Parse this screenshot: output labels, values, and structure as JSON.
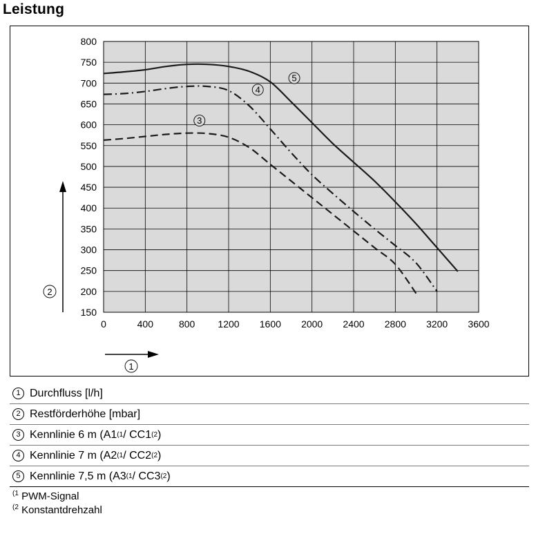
{
  "title": "Leistung",
  "chart_data": {
    "type": "line",
    "xlim": [
      0,
      3600
    ],
    "ylim": [
      150,
      800
    ],
    "x_ticks": [
      "0",
      "400",
      "800",
      "1200",
      "1600",
      "2000",
      "2400",
      "2800",
      "3200",
      "3600"
    ],
    "y_ticks": [
      "150",
      "200",
      "250",
      "300",
      "350",
      "400",
      "450",
      "500",
      "550",
      "600",
      "650",
      "700",
      "750",
      "800"
    ],
    "grid": true,
    "axis_markers": {
      "x": "1",
      "y": "2"
    },
    "series": [
      {
        "marker": "3",
        "style": "dashed",
        "points": [
          [
            0,
            563
          ],
          [
            200,
            567
          ],
          [
            400,
            572
          ],
          [
            600,
            577
          ],
          [
            800,
            580
          ],
          [
            1000,
            579
          ],
          [
            1200,
            570
          ],
          [
            1400,
            545
          ],
          [
            1600,
            505
          ],
          [
            1800,
            465
          ],
          [
            2000,
            425
          ],
          [
            2200,
            385
          ],
          [
            2400,
            345
          ],
          [
            2600,
            305
          ],
          [
            2800,
            265
          ],
          [
            3000,
            195
          ]
        ]
      },
      {
        "marker": "4",
        "style": "dashdot",
        "points": [
          [
            0,
            673
          ],
          [
            200,
            675
          ],
          [
            400,
            680
          ],
          [
            600,
            687
          ],
          [
            800,
            692
          ],
          [
            1000,
            692
          ],
          [
            1200,
            682
          ],
          [
            1400,
            645
          ],
          [
            1600,
            590
          ],
          [
            1800,
            533
          ],
          [
            2000,
            480
          ],
          [
            2200,
            435
          ],
          [
            2400,
            392
          ],
          [
            2600,
            350
          ],
          [
            2800,
            310
          ],
          [
            3000,
            268
          ],
          [
            3200,
            200
          ]
        ]
      },
      {
        "marker": "5",
        "style": "solid",
        "points": [
          [
            0,
            723
          ],
          [
            200,
            727
          ],
          [
            400,
            732
          ],
          [
            600,
            740
          ],
          [
            800,
            745
          ],
          [
            1000,
            745
          ],
          [
            1200,
            740
          ],
          [
            1400,
            728
          ],
          [
            1600,
            703
          ],
          [
            1800,
            655
          ],
          [
            2000,
            605
          ],
          [
            2200,
            555
          ],
          [
            2400,
            510
          ],
          [
            2600,
            465
          ],
          [
            2800,
            415
          ],
          [
            3000,
            362
          ],
          [
            3200,
            305
          ],
          [
            3400,
            248
          ]
        ]
      }
    ],
    "curve_labels": [
      {
        "marker": "3",
        "at": [
          920,
          610
        ]
      },
      {
        "marker": "4",
        "at": [
          1480,
          684
        ]
      },
      {
        "marker": "5",
        "at": [
          1830,
          712
        ]
      }
    ]
  },
  "legend": [
    {
      "marker": "1",
      "text": "Durchfluss [l/h]"
    },
    {
      "marker": "2",
      "text": "Restförderhöhe [mbar]"
    },
    {
      "marker": "3",
      "text": "Kennlinie 6 m (A1",
      "ref1": "(1",
      "mid": " / CC1",
      "ref2": "(2",
      "end": ")"
    },
    {
      "marker": "4",
      "text": "Kennlinie 7 m (A2",
      "ref1": "(1",
      "mid": " / CC2",
      "ref2": "(2",
      "end": ")"
    },
    {
      "marker": "5",
      "text": "Kennlinie 7,5 m (A3",
      "ref1": "(1",
      "mid": " / CC3",
      "ref2": "(2",
      "end": ")"
    }
  ],
  "footnotes": [
    {
      "ref": "(1",
      "text": " PWM-Signal"
    },
    {
      "ref": "(2",
      "text": " Konstantdrehzahl"
    }
  ]
}
